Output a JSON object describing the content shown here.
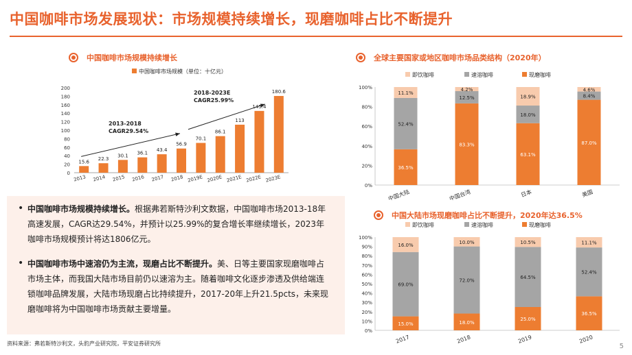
{
  "page_title": "中国咖啡市场发展现状：市场规模持续增长，现磨咖啡占比不断提升",
  "page_number": "5",
  "source": "资料来源：弗若斯特沙利文，头豹产业研究院，平安证券研究所",
  "bullets": [
    {
      "bold": "中国咖啡市场规模持续增长。",
      "text": "根据弗若斯特沙利文数据，中国咖啡市场2013-18年高速发展，CAGR达29.54%，并预计以25.99%的复合增长率继续增长，2023年咖啡市场规模预计将达1806亿元。"
    },
    {
      "bold": "中国咖啡市场中速溶仍为主流，现磨占比不断提升。",
      "text": "美、日等主要国家现磨咖啡占市场主体，而我国大陆市场目前仍以速溶为主。随着咖啡文化逐步渗透及供给端连锁咖啡品牌发展，大陆市场现磨占比持续提升，2017-20年上升21.5pcts，未来现磨咖啡将为中国咖啡市场贡献主要增量。"
    }
  ],
  "colors": {
    "orange": "#ed7d31",
    "gray": "#a5a5a5",
    "peach": "#f8cbad",
    "accent": "#e8622d"
  },
  "chart_data": [
    {
      "type": "bar",
      "title": "中国咖啡市场规模持续增长",
      "legend": "中国咖啡市场规模（单位：十亿元）",
      "categories": [
        "2013",
        "2014",
        "2015",
        "2016",
        "2017",
        "2018",
        "2019E",
        "2020E",
        "2021E",
        "2022E",
        "2023E"
      ],
      "values": [
        15.6,
        22.3,
        30.1,
        36.1,
        43.4,
        56.9,
        70.1,
        86.1,
        113,
        145.4,
        180.6
      ],
      "ylim": [
        0,
        200
      ],
      "yticks": [
        0,
        20,
        40,
        60,
        80,
        100,
        120,
        140,
        160,
        180,
        200
      ],
      "annotations": [
        [
          "2013-2018",
          "CAGR29.54%"
        ],
        [
          "2018-2023E",
          "CAGR25.99%"
        ]
      ]
    },
    {
      "type": "bar",
      "stacked": true,
      "title": "全球主要国家或地区咖啡市场品类结构（2020年）",
      "categories": [
        "中国大陆",
        "中国台湾",
        "日本",
        "美国"
      ],
      "series": [
        {
          "name": "现磨咖啡",
          "values": [
            36.5,
            83.3,
            63.1,
            87.0
          ]
        },
        {
          "name": "速溶咖啡",
          "values": [
            52.4,
            12.5,
            18.0,
            8.4
          ]
        },
        {
          "name": "即饮咖啡",
          "values": [
            11.1,
            4.2,
            18.9,
            4.6
          ]
        }
      ],
      "legend_order": [
        "即饮咖啡",
        "速溶咖啡",
        "现磨咖啡"
      ],
      "ylim": [
        0,
        100
      ],
      "yticks": [
        "0%",
        "20%",
        "40%",
        "60%",
        "80%",
        "100%"
      ]
    },
    {
      "type": "bar",
      "stacked": true,
      "title": "中国大陆市场现磨咖啡占比不断提升，2020年达36.5%",
      "categories": [
        "2017",
        "2018",
        "2019",
        "2020"
      ],
      "series": [
        {
          "name": "现磨咖啡",
          "values": [
            15.0,
            18.0,
            25.0,
            36.5
          ]
        },
        {
          "name": "速溶咖啡",
          "values": [
            69.0,
            72.0,
            64.5,
            52.4
          ]
        },
        {
          "name": "即饮咖啡",
          "values": [
            16.0,
            10.0,
            10.5,
            11.1
          ]
        }
      ],
      "legend_order": [
        "即饮咖啡",
        "速溶咖啡",
        "现磨咖啡"
      ],
      "ylim": [
        0,
        100
      ],
      "yticks": [
        "0%",
        "10%",
        "20%",
        "30%",
        "40%",
        "50%",
        "60%",
        "70%",
        "80%",
        "90%",
        "100%"
      ]
    }
  ]
}
